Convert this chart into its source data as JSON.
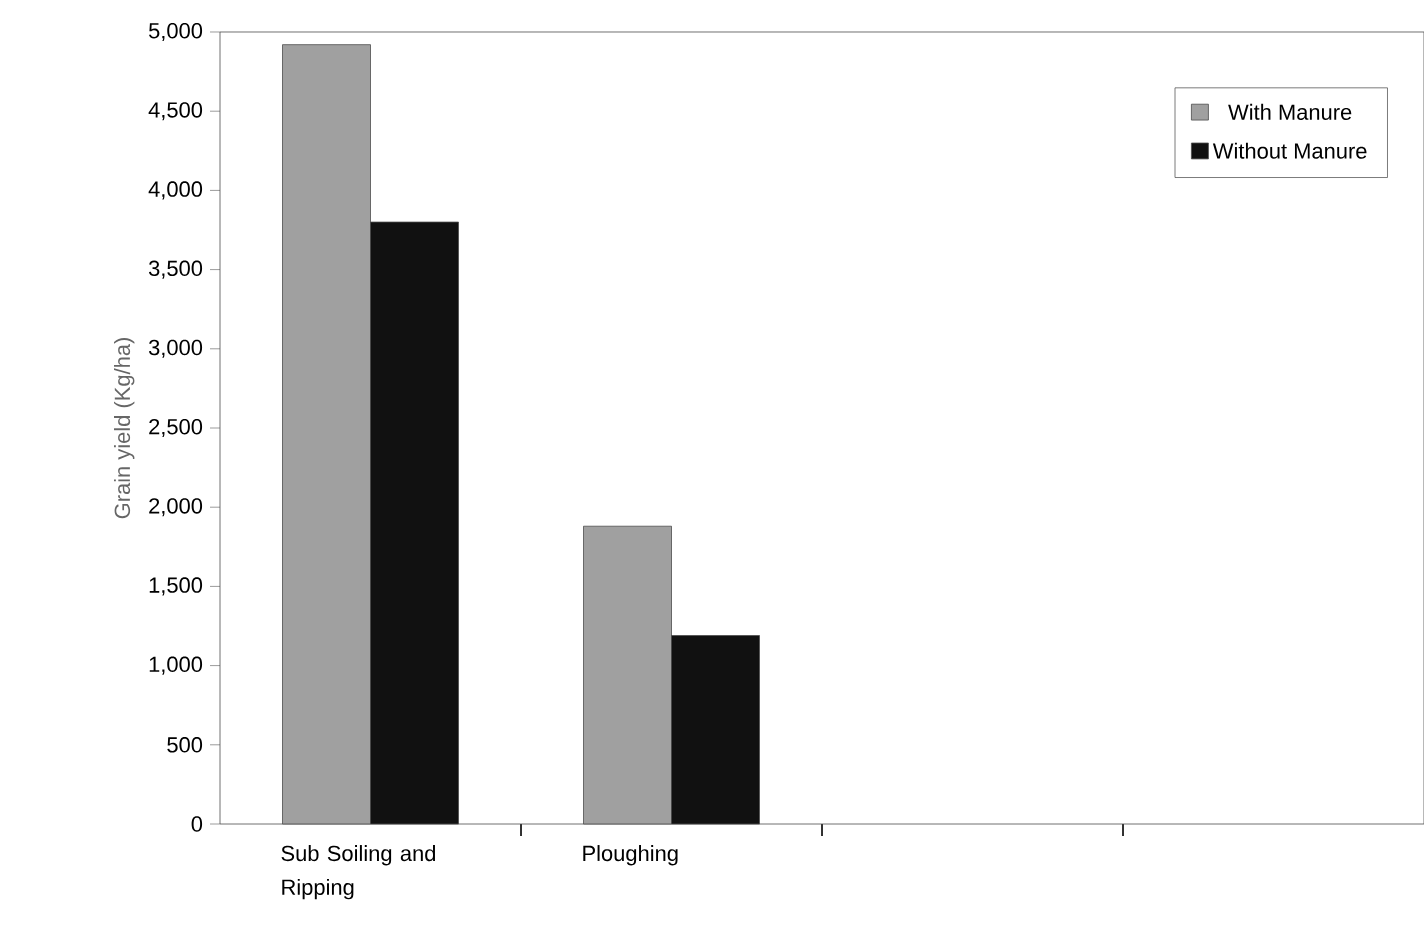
{
  "chart_data": {
    "type": "bar",
    "ylabel": "Grain yield (Kg/ha)",
    "categories": [
      "Sub Soiling and Ripping",
      "Ploughing",
      null,
      null
    ],
    "series": [
      {
        "name": "With Manure",
        "color": "#a0a0a0",
        "values": [
          4920,
          1880,
          null,
          null
        ]
      },
      {
        "name": "Without Manure",
        "color": "#111111",
        "values": [
          3800,
          1190,
          null,
          null
        ]
      }
    ],
    "ylim": [
      0,
      5000
    ],
    "yticks": [
      {
        "value": 0,
        "label": "0"
      },
      {
        "value": 500,
        "label": "500"
      },
      {
        "value": 1000,
        "label": "1,000"
      },
      {
        "value": 1500,
        "label": "1,500"
      },
      {
        "value": 2000,
        "label": "2,000"
      },
      {
        "value": 2500,
        "label": "2,500"
      },
      {
        "value": 3000,
        "label": "3,000"
      },
      {
        "value": 3500,
        "label": "3,500"
      },
      {
        "value": 4000,
        "label": "4,000"
      },
      {
        "value": 4500,
        "label": "4,500"
      },
      {
        "value": 5000,
        "label": "5,000"
      }
    ],
    "grid": false,
    "legend": "top right"
  }
}
